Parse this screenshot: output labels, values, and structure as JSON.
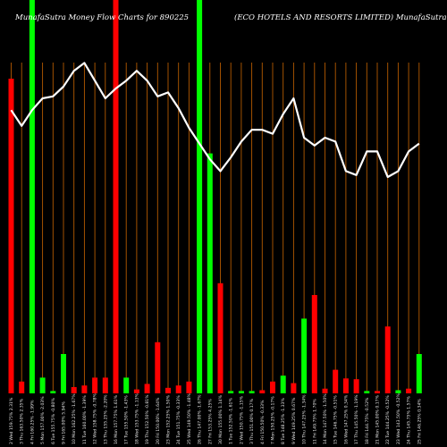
{
  "chart_data": {
    "type": "bar",
    "title_left": "MunafaSutra  Money Flow  Charts for 890225",
    "title_right": "(ECO HOTELS AND RESORTS LIMITED) MunafaSutra.com",
    "colors": {
      "up": "#00ff00",
      "down": "#ff0000",
      "grid": "#b45a00",
      "line": "#ffffff",
      "background": "#000000"
    },
    "ylim": [
      0,
      100
    ],
    "categories": [
      "2 Wed 159.75% 2.31%",
      "3 Thu 163.50% 2.35%",
      "4 Fri 160.25% -1.99%",
      "5 Mon 157.00% -2.03%",
      "6 Tue 155.75% -0.80%",
      "9 Fri 165.00% 5.94%",
      "10 Mon 162.25% -1.67%",
      "11 Tue 160.00% -1.39%",
      "12 Wed 158.75% -0.78%",
      "13 Thu 155.25% -2.20%",
      "16 Mon 157.75% 1.61%",
      "17 Tue 155.50% -1.43%",
      "18 Wed 153.75% -1.13%",
      "19 Thu 152.50% -0.81%",
      "20 Fri 150.00% -1.64%",
      "23 Mon 152.25% 1.50%",
      "24 Tue 151.75% -0.33%",
      "25 Wed 149.50% -1.48%",
      "26 Thu 147.00% -1.67%",
      "27 Fri 153.25% 4.25%",
      "30 Mon 155.00% 1.14%",
      "1 Tue 152.50% -1.61%",
      "2 Wed 150.75% -1.15%",
      "3 Thu 151.00% 0.17%",
      "4 Fri 150.50% -0.33%",
      "7 Mon 150.25% -0.17%",
      "8 Tue 148.25% -1.33%",
      "9 Wed 149.25% 0.67%",
      "10 Thu 147.25% -1.34%",
      "11 Fri 149.75% 1.70%",
      "14 Mon 147.50% -1.50%",
      "15 Tue 146.75% -0.51%",
      "16 Wed 147.25% 0.34%",
      "17 Thu 145.50% -1.19%",
      "18 Fri 144.75% -0.52%",
      "21 Mon 145.00% 0.17%",
      "22 Tue 144.25% -0.52%",
      "23 Wed 143.50% -0.52%",
      "24 Thu 145.75% 1.57%",
      "25 Fri 146.25% 0.34%"
    ],
    "bar_values": [
      80,
      3,
      100,
      4,
      0.6,
      10,
      1.6,
      2,
      4,
      4,
      100,
      4,
      1,
      2.4,
      13,
      1.4,
      2,
      3,
      100,
      61,
      28,
      0.6,
      0.6,
      0.6,
      0.8,
      3,
      4.5,
      2.6,
      19,
      25,
      1.2,
      6,
      3.8,
      3.6,
      0.6,
      0.6,
      17,
      0.8,
      1.2,
      10
    ],
    "bar_directions": [
      "down",
      "down",
      "up",
      "up",
      "up",
      "up",
      "down",
      "down",
      "down",
      "down",
      "down",
      "up",
      "down",
      "down",
      "down",
      "down",
      "down",
      "down",
      "up",
      "up",
      "down",
      "up",
      "up",
      "up",
      "down",
      "down",
      "up",
      "down",
      "up",
      "down",
      "down",
      "down",
      "down",
      "down",
      "up",
      "down",
      "down",
      "up",
      "down",
      "up"
    ],
    "line_values": [
      72,
      68,
      72,
      75,
      75.5,
      78,
      82,
      84,
      79.5,
      75,
      77.5,
      79.5,
      82,
      79.5,
      75.5,
      76.5,
      72.5,
      67.5,
      63.5,
      59.5,
      56.5,
      60,
      64,
      67,
      67,
      66,
      71,
      75,
      65,
      63,
      65,
      64,
      56.5,
      55.5,
      61.5,
      61.5,
      55,
      56.5,
      61.5,
      63.5
    ]
  }
}
